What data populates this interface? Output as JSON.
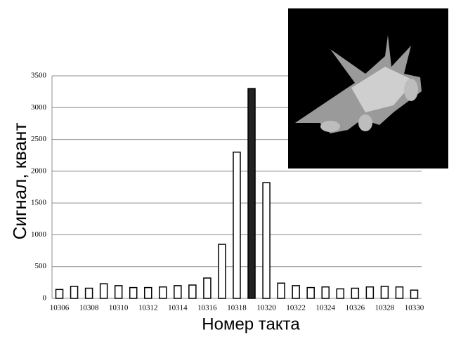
{
  "chart_data": {
    "type": "bar",
    "x_label": "Номер такта",
    "y_label": "Сигнал, квант",
    "categories": [
      "10306",
      null,
      "10308",
      null,
      "10310",
      null,
      "10312",
      null,
      "10314",
      null,
      "10316",
      null,
      "10318",
      null,
      "10320",
      null,
      "10322",
      null,
      "10324",
      null,
      "10326",
      null,
      "10328",
      null,
      "10330"
    ],
    "values": [
      140,
      190,
      160,
      230,
      200,
      170,
      170,
      180,
      200,
      210,
      320,
      850,
      2300,
      3300,
      1820,
      240,
      200,
      170,
      180,
      150,
      160,
      180,
      190,
      180,
      130
    ],
    "colors": [
      "#ffffff",
      "#ffffff",
      "#ffffff",
      "#ffffff",
      "#ffffff",
      "#ffffff",
      "#ffffff",
      "#ffffff",
      "#ffffff",
      "#ffffff",
      "#ffffff",
      "#ffffff",
      "#ffffff",
      "#222222",
      "#ffffff",
      "#ffffff",
      "#ffffff",
      "#ffffff",
      "#ffffff",
      "#ffffff",
      "#ffffff",
      "#ffffff",
      "#ffffff",
      "#ffffff",
      "#ffffff"
    ],
    "edge_color": "#000000",
    "ylim": [
      0,
      3500
    ],
    "yticks": [
      0,
      500,
      1000,
      1500,
      2000,
      2500,
      3000,
      3500
    ],
    "grid": true
  }
}
